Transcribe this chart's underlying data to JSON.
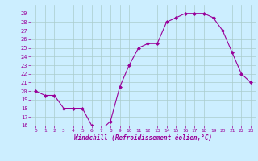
{
  "x": [
    0,
    1,
    2,
    3,
    4,
    5,
    6,
    7,
    8,
    9,
    10,
    11,
    12,
    13,
    14,
    15,
    16,
    17,
    18,
    19,
    20,
    21,
    22,
    23
  ],
  "y": [
    20,
    19.5,
    19.5,
    18,
    18,
    18,
    16,
    15.5,
    16.5,
    20.5,
    23,
    25,
    25.5,
    25.5,
    28,
    28.5,
    29,
    29,
    29,
    28.5,
    27,
    24.5,
    22,
    21
  ],
  "line_color": "#990099",
  "marker": "D",
  "marker_size": 2,
  "bg_color": "#cceeff",
  "grid_color": "#aacccc",
  "xlabel": "Windchill (Refroidissement éolien,°C)",
  "xlabel_color": "#990099",
  "tick_color": "#990099",
  "ylim": [
    16,
    30
  ],
  "xlim": [
    -0.5,
    23.5
  ],
  "yticks": [
    16,
    17,
    18,
    19,
    20,
    21,
    22,
    23,
    24,
    25,
    26,
    27,
    28,
    29
  ],
  "xticks": [
    0,
    1,
    2,
    3,
    4,
    5,
    6,
    7,
    8,
    9,
    10,
    11,
    12,
    13,
    14,
    15,
    16,
    17,
    18,
    19,
    20,
    21,
    22,
    23
  ],
  "xtick_fontsize": 4.5,
  "ytick_fontsize": 5.0,
  "xlabel_fontsize": 5.5
}
